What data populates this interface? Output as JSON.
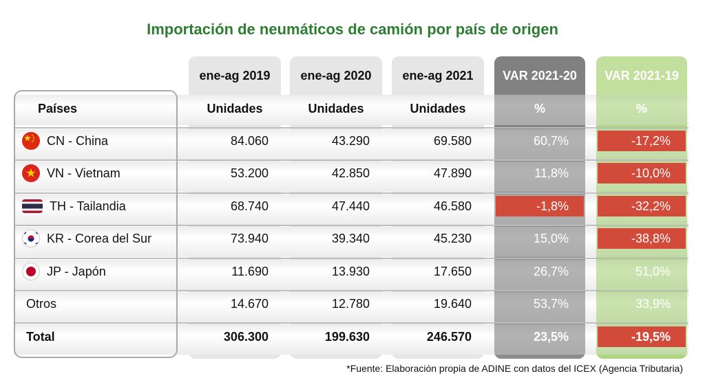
{
  "title": "Importación de neumáticos de camión por país de origen",
  "columns": [
    {
      "period": "ene-ag 2019",
      "unit": "Unidades"
    },
    {
      "period": "ene-ag 2020",
      "unit": "Unidades"
    },
    {
      "period": "ene-ag 2021",
      "unit": "Unidades"
    },
    {
      "period": "VAR 2021-20",
      "unit": "%"
    },
    {
      "period": "VAR 2021-19",
      "unit": "%"
    }
  ],
  "country_header": "Países",
  "rows": [
    {
      "name": "CN - China",
      "flag_icon": "china-flag-icon",
      "v2019": "84.060",
      "v2020": "43.290",
      "v2021": "69.580",
      "var2120": "60,7%",
      "var2119": "-17,2%"
    },
    {
      "name": "VN - Vietnam",
      "flag_icon": "vietnam-flag-icon",
      "v2019": "53.200",
      "v2020": "42.850",
      "v2021": "47.890",
      "var2120": "11,8%",
      "var2119": "-10,0%"
    },
    {
      "name": "TH - Tailandia",
      "flag_icon": "thailand-flag-icon",
      "v2019": "68.740",
      "v2020": "47.440",
      "v2021": "46.580",
      "var2120": "-1,8%",
      "var2119": "-32,2%"
    },
    {
      "name": "KR - Corea del Sur",
      "flag_icon": "south-korea-flag-icon",
      "v2019": "73.940",
      "v2020": "39.340",
      "v2021": "45.230",
      "var2120": "15,0%",
      "var2119": "-38,8%"
    },
    {
      "name": "JP - Japón",
      "flag_icon": "japan-flag-icon",
      "v2019": "11.690",
      "v2020": "13.930",
      "v2021": "17.650",
      "var2120": "26,7%",
      "var2119": "51,0%"
    },
    {
      "name": "Otros",
      "flag_icon": "",
      "v2019": "14.670",
      "v2020": "12.780",
      "v2021": "19.640",
      "var2120": "53,7%",
      "var2119": "33,9%"
    }
  ],
  "total": {
    "name": "Total",
    "v2019": "306.300",
    "v2020": "199.630",
    "v2021": "246.570",
    "var2120": "23,5%",
    "var2119": "-19,5%"
  },
  "footnote": "*Fuente: Elaboración propia de ADINE con datos del ICEX (Agencia Tributaria)",
  "colors": {
    "title": "#2e7d32",
    "negative": "#d24a3a",
    "var2120_bg": "#8a8a8a",
    "var2119_bg": "#a9cf7d"
  }
}
